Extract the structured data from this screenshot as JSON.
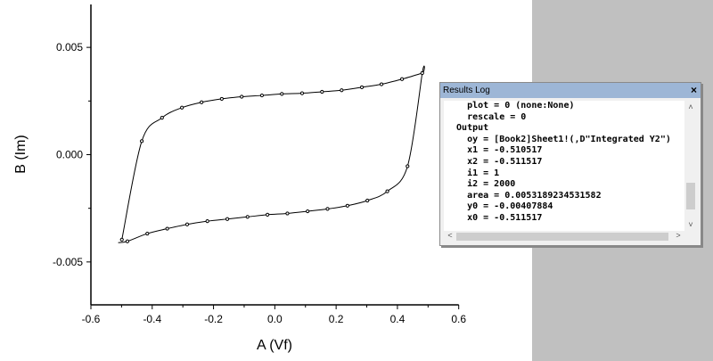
{
  "chart_data": {
    "type": "line",
    "xlabel": "A (Vf)",
    "ylabel": "B (Im)",
    "xlim": [
      -0.6,
      0.6
    ],
    "ylim": [
      -0.007,
      0.007
    ],
    "xticks": [
      "-0.6",
      "-0.4",
      "-0.2",
      "0.0",
      "0.2",
      "0.4",
      "0.6"
    ],
    "xtick_values": [
      -0.6,
      -0.4,
      -0.2,
      0,
      0.2,
      0.4,
      0.6
    ],
    "yticks": [
      "-0.005",
      "0.000",
      "0.005"
    ],
    "ytick_values": [
      -0.005,
      0,
      0.005
    ],
    "grid": false,
    "line_color": "#000000",
    "marker": "open-circle",
    "series": [
      {
        "x": [
          -0.511,
          -0.481,
          -0.416,
          -0.351,
          -0.286,
          -0.22,
          -0.155,
          -0.089,
          -0.024,
          0.041,
          0.107,
          0.172,
          0.237,
          0.302,
          0.367,
          0.433,
          0.481,
          0.481,
          0.415,
          0.348,
          0.284,
          0.218,
          0.154,
          0.089,
          0.023,
          -0.042,
          -0.108,
          -0.173,
          -0.239,
          -0.303,
          -0.368,
          -0.434,
          -0.499
        ],
        "y": [
          -0.0041,
          -0.00404,
          -0.00368,
          -0.00345,
          -0.00325,
          -0.0031,
          -0.003,
          -0.0029,
          -0.0028,
          -0.00274,
          -0.00264,
          -0.00253,
          -0.00238,
          -0.00214,
          -0.00171,
          -0.00054,
          0.0038,
          0.0038,
          0.00352,
          0.00328,
          0.00314,
          0.003,
          0.00293,
          0.00286,
          0.00283,
          0.00276,
          0.0027,
          0.0026,
          0.00244,
          0.00219,
          0.00172,
          0.00063,
          -0.00396
        ]
      }
    ]
  },
  "results_log": {
    "title": "Results Log",
    "close": "×",
    "lines": [
      "    plot = 0 (none:None)",
      "    rescale = 0",
      "  Output",
      "    oy = [Book2]Sheet1!(,D\"Integrated Y2\")",
      "    x1 = -0.510517",
      "    x2 = -0.511517",
      "    i1 = 1",
      "    i2 = 2000",
      "    area = 0.0053189234531582",
      "    y0 = -0.00407884",
      "    x0 = -0.511517"
    ]
  }
}
